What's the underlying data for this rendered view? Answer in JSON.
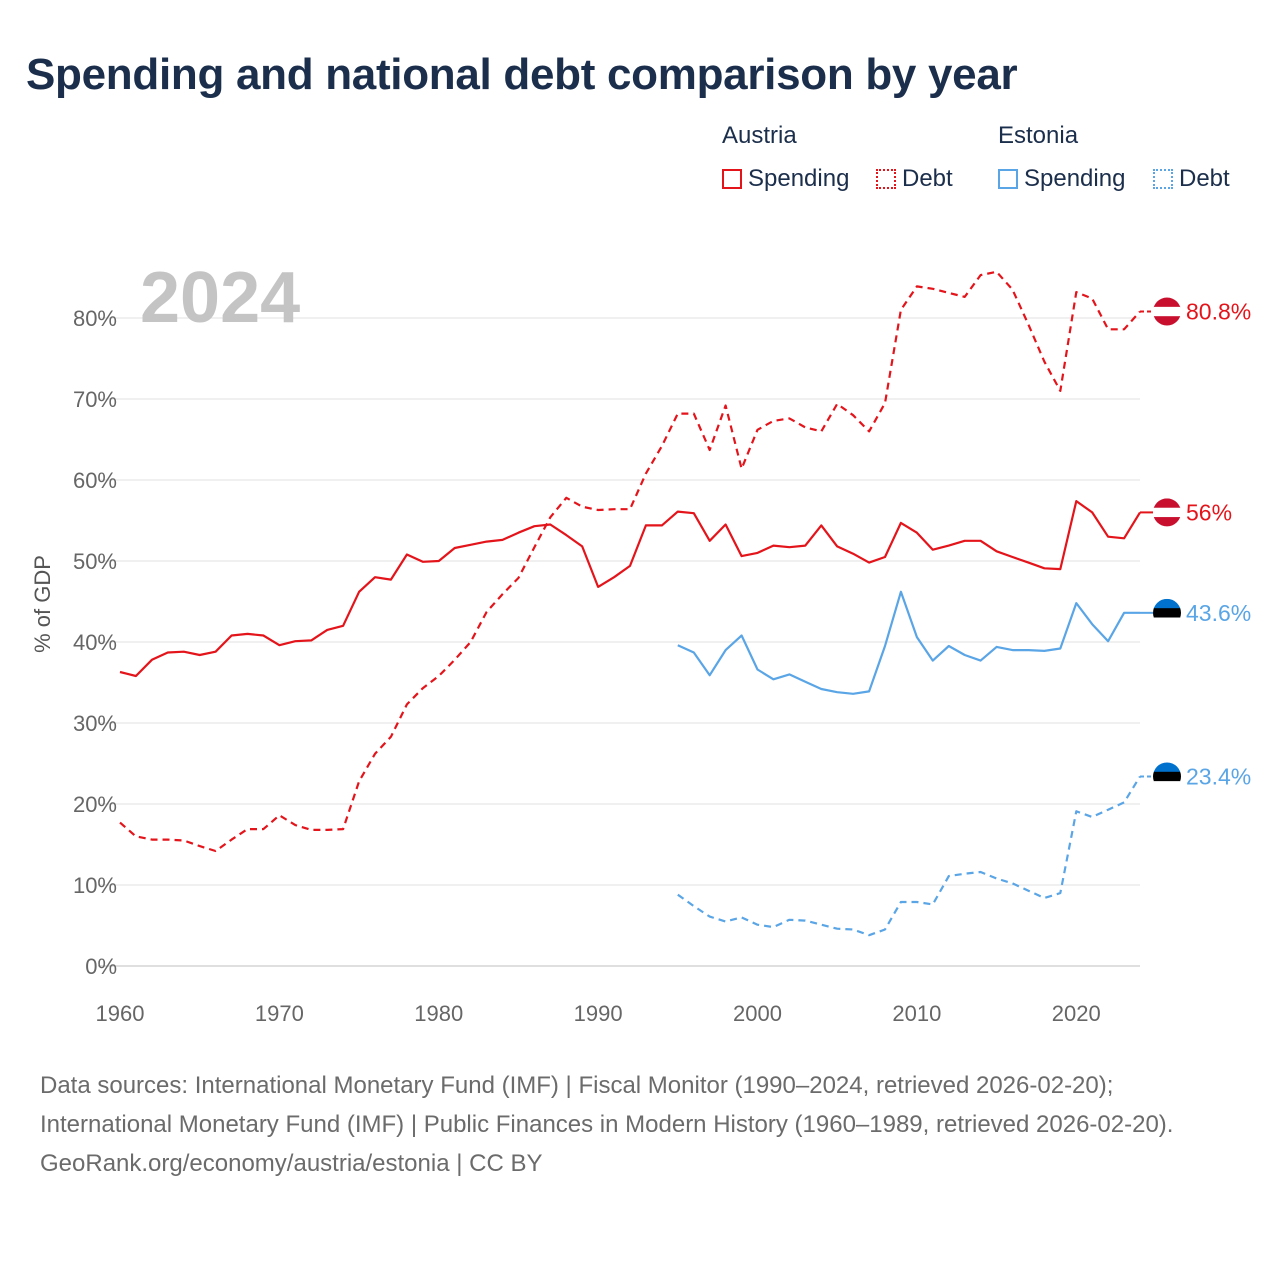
{
  "title": "Spending and national debt comparison by year",
  "legend": {
    "groups": [
      {
        "name": "Austria",
        "items": [
          {
            "label": "Spending",
            "style": "solid",
            "color": "#e4141b"
          },
          {
            "label": "Debt",
            "style": "dashed",
            "color": "#e4141b"
          }
        ]
      },
      {
        "name": "Estonia",
        "items": [
          {
            "label": "Spending",
            "style": "solid",
            "color": "#5aa5e6"
          },
          {
            "label": "Debt",
            "style": "dashed",
            "color": "#5aa5e6"
          }
        ]
      }
    ]
  },
  "chart_data": {
    "type": "line",
    "year_label": "2024",
    "ylabel": "% of GDP",
    "xlabel": "",
    "xlim": [
      1960,
      2024
    ],
    "ylim": [
      0,
      85
    ],
    "xticks": [
      1960,
      1970,
      1980,
      1990,
      2000,
      2010,
      2020
    ],
    "yticks": [
      0,
      10,
      20,
      30,
      40,
      50,
      60,
      70,
      80
    ],
    "ytick_labels": [
      "0%",
      "10%",
      "20%",
      "30%",
      "40%",
      "50%",
      "60%",
      "70%",
      "80%"
    ],
    "series": [
      {
        "name": "Austria Spending",
        "country": "Austria",
        "metric": "Spending",
        "color": "#e4141b",
        "dashed": false,
        "end_label": "56%",
        "x": [
          1960,
          1961,
          1962,
          1963,
          1964,
          1965,
          1966,
          1967,
          1968,
          1969,
          1970,
          1971,
          1972,
          1973,
          1974,
          1975,
          1976,
          1977,
          1978,
          1979,
          1980,
          1981,
          1982,
          1983,
          1984,
          1985,
          1986,
          1987,
          1988,
          1989,
          1990,
          1991,
          1992,
          1993,
          1994,
          1995,
          1996,
          1997,
          1998,
          1999,
          2000,
          2001,
          2002,
          2003,
          2004,
          2005,
          2006,
          2007,
          2008,
          2009,
          2010,
          2011,
          2012,
          2013,
          2014,
          2015,
          2016,
          2017,
          2018,
          2019,
          2020,
          2021,
          2022,
          2023,
          2024
        ],
        "values": [
          36.3,
          35.8,
          37.8,
          38.7,
          38.8,
          38.4,
          38.8,
          40.8,
          41.0,
          40.8,
          39.6,
          40.1,
          40.2,
          41.5,
          42.0,
          46.2,
          48.0,
          47.7,
          50.8,
          49.9,
          50.0,
          51.6,
          52.0,
          52.4,
          52.6,
          53.5,
          54.3,
          54.5,
          53.2,
          51.8,
          46.8,
          48.0,
          49.4,
          54.4,
          54.4,
          56.1,
          55.9,
          52.5,
          54.5,
          50.6,
          51.0,
          51.9,
          51.7,
          51.9,
          54.4,
          51.8,
          50.9,
          49.8,
          50.5,
          54.7,
          53.5,
          51.4,
          51.9,
          52.5,
          52.5,
          51.2,
          50.5,
          49.8,
          49.1,
          49.0,
          57.4,
          56.0,
          53.0,
          52.8,
          56.0
        ]
      },
      {
        "name": "Austria Debt",
        "country": "Austria",
        "metric": "Debt",
        "color": "#e4141b",
        "dashed": true,
        "end_label": "80.8%",
        "x": [
          1960,
          1961,
          1962,
          1963,
          1964,
          1965,
          1966,
          1967,
          1968,
          1969,
          1970,
          1971,
          1972,
          1973,
          1974,
          1975,
          1976,
          1977,
          1978,
          1979,
          1980,
          1981,
          1982,
          1983,
          1984,
          1985,
          1986,
          1987,
          1988,
          1989,
          1990,
          1991,
          1992,
          1993,
          1994,
          1995,
          1996,
          1997,
          1998,
          1999,
          2000,
          2001,
          2002,
          2003,
          2004,
          2005,
          2006,
          2007,
          2008,
          2009,
          2010,
          2011,
          2012,
          2013,
          2014,
          2015,
          2016,
          2017,
          2018,
          2019,
          2020,
          2021,
          2022,
          2023,
          2024
        ],
        "values": [
          17.7,
          16.0,
          15.6,
          15.6,
          15.5,
          14.8,
          14.2,
          15.6,
          16.9,
          16.9,
          18.6,
          17.4,
          16.8,
          16.8,
          16.9,
          22.8,
          26.2,
          28.3,
          32.3,
          34.3,
          35.8,
          37.8,
          40.0,
          43.7,
          45.9,
          47.9,
          51.7,
          55.4,
          57.8,
          56.7,
          56.3,
          56.4,
          56.4,
          60.8,
          64.2,
          68.2,
          68.2,
          63.7,
          69.2,
          61.4,
          66.2,
          67.3,
          67.6,
          66.5,
          66.0,
          69.4,
          68.0,
          66.0,
          69.5,
          81.0,
          83.9,
          83.6,
          83.1,
          82.6,
          85.3,
          85.7,
          83.5,
          79.2,
          74.6,
          71.0,
          83.2,
          82.4,
          78.6,
          78.6,
          80.8
        ]
      },
      {
        "name": "Estonia Spending",
        "country": "Estonia",
        "metric": "Spending",
        "color": "#5aa5e6",
        "dashed": false,
        "end_label": "43.6%",
        "x": [
          1995,
          1996,
          1997,
          1998,
          1999,
          2000,
          2001,
          2002,
          2003,
          2004,
          2005,
          2006,
          2007,
          2008,
          2009,
          2010,
          2011,
          2012,
          2013,
          2014,
          2015,
          2016,
          2017,
          2018,
          2019,
          2020,
          2021,
          2022,
          2023,
          2024
        ],
        "values": [
          39.6,
          38.7,
          35.9,
          39.0,
          40.8,
          36.6,
          35.4,
          36.0,
          35.1,
          34.2,
          33.8,
          33.6,
          33.9,
          39.5,
          46.2,
          40.6,
          37.7,
          39.5,
          38.4,
          37.7,
          39.4,
          39.0,
          39.0,
          38.9,
          39.2,
          44.8,
          42.2,
          40.1,
          43.6,
          43.6
        ]
      },
      {
        "name": "Estonia Debt",
        "country": "Estonia",
        "metric": "Debt",
        "color": "#5aa5e6",
        "dashed": true,
        "end_label": "23.4%",
        "x": [
          1995,
          1996,
          1997,
          1998,
          1999,
          2000,
          2001,
          2002,
          2003,
          2004,
          2005,
          2006,
          2007,
          2008,
          2009,
          2010,
          2011,
          2012,
          2013,
          2014,
          2015,
          2016,
          2017,
          2018,
          2019,
          2020,
          2021,
          2022,
          2023,
          2024
        ],
        "values": [
          8.8,
          7.4,
          6.1,
          5.5,
          6.0,
          5.1,
          4.8,
          5.7,
          5.6,
          5.1,
          4.6,
          4.5,
          3.8,
          4.5,
          7.9,
          7.9,
          7.6,
          11.1,
          11.4,
          11.6,
          10.8,
          10.2,
          9.3,
          8.4,
          9.0,
          19.1,
          18.4,
          19.3,
          20.2,
          23.4
        ]
      }
    ],
    "flags": {
      "Austria": [
        "#c8102e",
        "#ffffff",
        "#c8102e"
      ],
      "Estonia": [
        "#0072ce",
        "#000000",
        "#ffffff"
      ]
    }
  },
  "footer": {
    "sources": "Data sources: International Monetary Fund (IMF) | Fiscal Monitor (1990–2024, retrieved 2026-02-20); International Monetary Fund (IMF) | Public Finances in Modern History (1960–1989, retrieved 2026-02-20).",
    "credit": "GeoRank.org/economy/austria/estonia | CC BY"
  }
}
